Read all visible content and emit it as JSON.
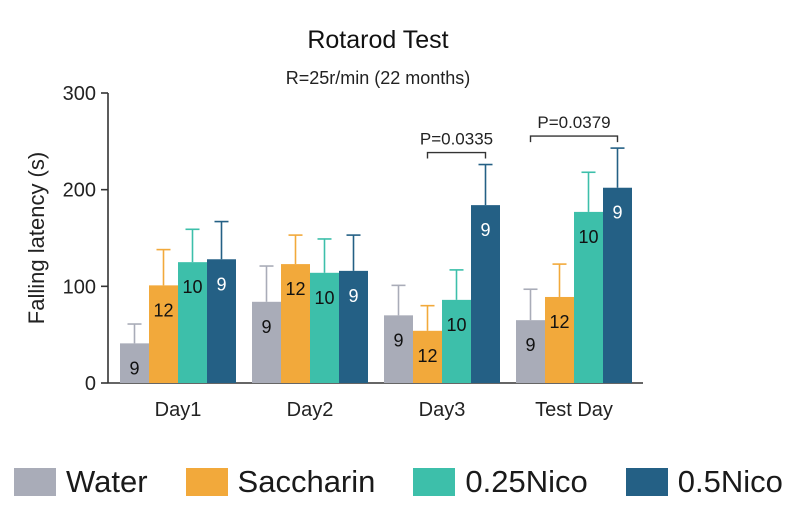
{
  "chart_data": {
    "type": "bar",
    "title": "Rotarod Test",
    "subtitle": "R=25r/min (22 months)",
    "ylabel": "Falling latency (s)",
    "xlabel": "",
    "ylim": [
      0,
      300
    ],
    "yticks": [
      0,
      100,
      200,
      300
    ],
    "categories": [
      "Day1",
      "Day2",
      "Day3",
      "Test Day"
    ],
    "series": [
      {
        "name": "Water",
        "color": "#a9acb8",
        "values": [
          41,
          84,
          70,
          65
        ],
        "errors": [
          20,
          37,
          31,
          32
        ],
        "n": [
          "9",
          "9",
          "9",
          "9"
        ]
      },
      {
        "name": "Saccharin",
        "color": "#f2a93b",
        "values": [
          101,
          123,
          54,
          89
        ],
        "errors": [
          37,
          30,
          26,
          34
        ],
        "n": [
          "12",
          "12",
          "12",
          "12"
        ]
      },
      {
        "name": "0.25Nico",
        "color": "#3dbfaa",
        "values": [
          125,
          114,
          86,
          177
        ],
        "errors": [
          34,
          35,
          31,
          41
        ],
        "n": [
          "10",
          "10",
          "10",
          "10"
        ]
      },
      {
        "name": "0.5Nico",
        "color": "#246085",
        "values": [
          128,
          116,
          184,
          202
        ],
        "errors": [
          39,
          37,
          42,
          41
        ],
        "n": [
          "9",
          "9",
          "9",
          "9"
        ]
      }
    ],
    "annotations": [
      {
        "text": "P=0.0335",
        "category": "Day3",
        "from_series": 1,
        "to_series": 3
      },
      {
        "text": "P=0.0379",
        "category": "Test Day",
        "from_series": 0,
        "to_series": 3
      }
    ],
    "grid": false,
    "legend_position": "bottom"
  }
}
